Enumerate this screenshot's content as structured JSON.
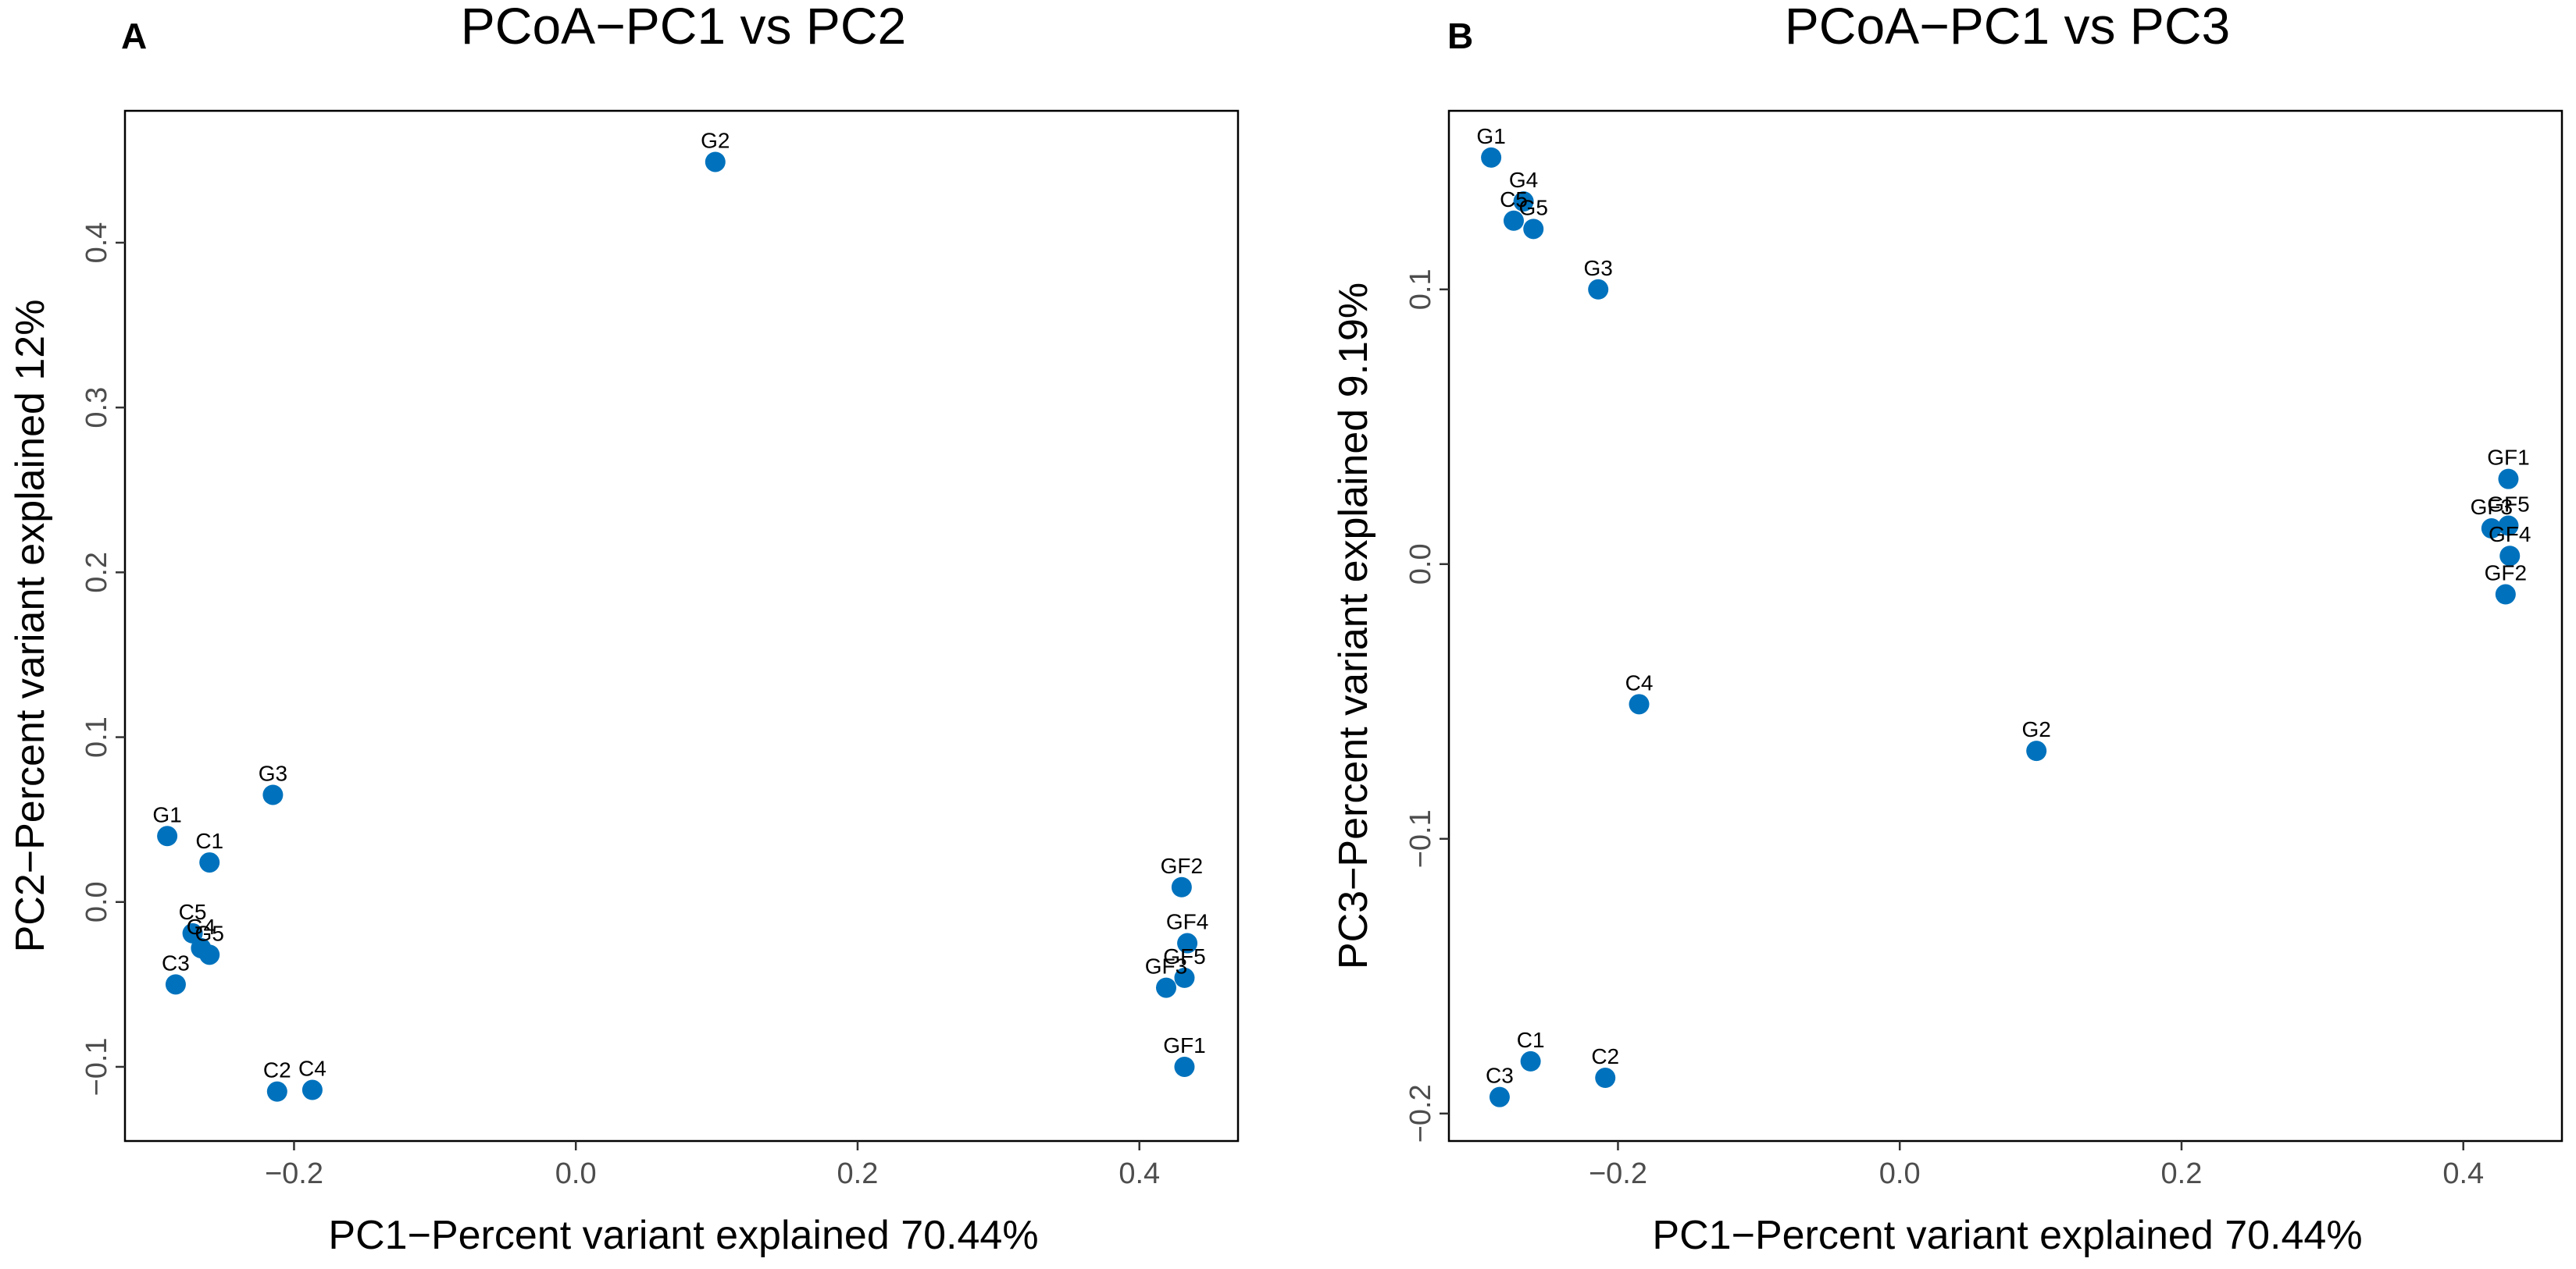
{
  "chart_data": [
    {
      "type": "scatter",
      "panel": "A",
      "title": "PCoA−PC1 vs PC2",
      "xlabel": "PC1−Percent variant explained 70.44%",
      "ylabel": "PC2−Percent variant explained 12%",
      "xlim": [
        -0.32,
        0.47
      ],
      "ylim": [
        -0.145,
        0.48
      ],
      "xticks": [
        -0.2,
        0.0,
        0.2,
        0.4
      ],
      "yticks": [
        -0.1,
        0.0,
        0.1,
        0.2,
        0.3,
        0.4
      ],
      "xtick_labels": [
        "−0.2",
        "0.0",
        "0.2",
        "0.4"
      ],
      "ytick_labels": [
        "−0.1",
        "0.0",
        "0.1",
        "0.2",
        "0.3",
        "0.4"
      ],
      "grid": false,
      "points": [
        {
          "label": "G2",
          "x": 0.099,
          "y": 0.449
        },
        {
          "label": "G3",
          "x": -0.215,
          "y": 0.065
        },
        {
          "label": "G1",
          "x": -0.29,
          "y": 0.04
        },
        {
          "label": "C1",
          "x": -0.26,
          "y": 0.024
        },
        {
          "label": "C5",
          "x": -0.272,
          "y": -0.019
        },
        {
          "label": "G4",
          "x": -0.266,
          "y": -0.028
        },
        {
          "label": "G5",
          "x": -0.26,
          "y": -0.032
        },
        {
          "label": "C3",
          "x": -0.284,
          "y": -0.05
        },
        {
          "label": "C2",
          "x": -0.212,
          "y": -0.115
        },
        {
          "label": "C4",
          "x": -0.187,
          "y": -0.114
        },
        {
          "label": "GF2",
          "x": 0.43,
          "y": 0.009
        },
        {
          "label": "GF4",
          "x": 0.434,
          "y": -0.025
        },
        {
          "label": "GF5",
          "x": 0.432,
          "y": -0.046
        },
        {
          "label": "GF3",
          "x": 0.419,
          "y": -0.052
        },
        {
          "label": "GF1",
          "x": 0.432,
          "y": -0.1
        }
      ]
    },
    {
      "type": "scatter",
      "panel": "B",
      "title": "PCoA−PC1 vs PC3",
      "xlabel": "PC1−Percent variant explained 70.44%",
      "ylabel": "PC3−Percent variant explained 9.19%",
      "xlim": [
        -0.32,
        0.47
      ],
      "ylim": [
        -0.21,
        0.165
      ],
      "xticks": [
        -0.2,
        0.0,
        0.2,
        0.4
      ],
      "yticks": [
        -0.2,
        -0.1,
        0.0,
        0.1
      ],
      "xtick_labels": [
        "−0.2",
        "0.0",
        "0.2",
        "0.4"
      ],
      "ytick_labels": [
        "−0.2",
        "−0.1",
        "0.0",
        "0.1"
      ],
      "grid": false,
      "points": [
        {
          "label": "G1",
          "x": -0.29,
          "y": 0.148
        },
        {
          "label": "G4",
          "x": -0.267,
          "y": 0.132
        },
        {
          "label": "C5",
          "x": -0.274,
          "y": 0.125
        },
        {
          "label": "G5",
          "x": -0.26,
          "y": 0.122
        },
        {
          "label": "G3",
          "x": -0.214,
          "y": 0.1
        },
        {
          "label": "C4",
          "x": -0.185,
          "y": -0.051
        },
        {
          "label": "G2",
          "x": 0.097,
          "y": -0.068
        },
        {
          "label": "C1",
          "x": -0.262,
          "y": -0.181
        },
        {
          "label": "C2",
          "x": -0.209,
          "y": -0.187
        },
        {
          "label": "C3",
          "x": -0.284,
          "y": -0.194
        },
        {
          "label": "GF1",
          "x": 0.432,
          "y": 0.031
        },
        {
          "label": "GF5",
          "x": 0.432,
          "y": 0.014
        },
        {
          "label": "GF3",
          "x": 0.42,
          "y": 0.013
        },
        {
          "label": "GF4",
          "x": 0.433,
          "y": 0.003
        },
        {
          "label": "GF2",
          "x": 0.43,
          "y": -0.011
        }
      ]
    }
  ]
}
